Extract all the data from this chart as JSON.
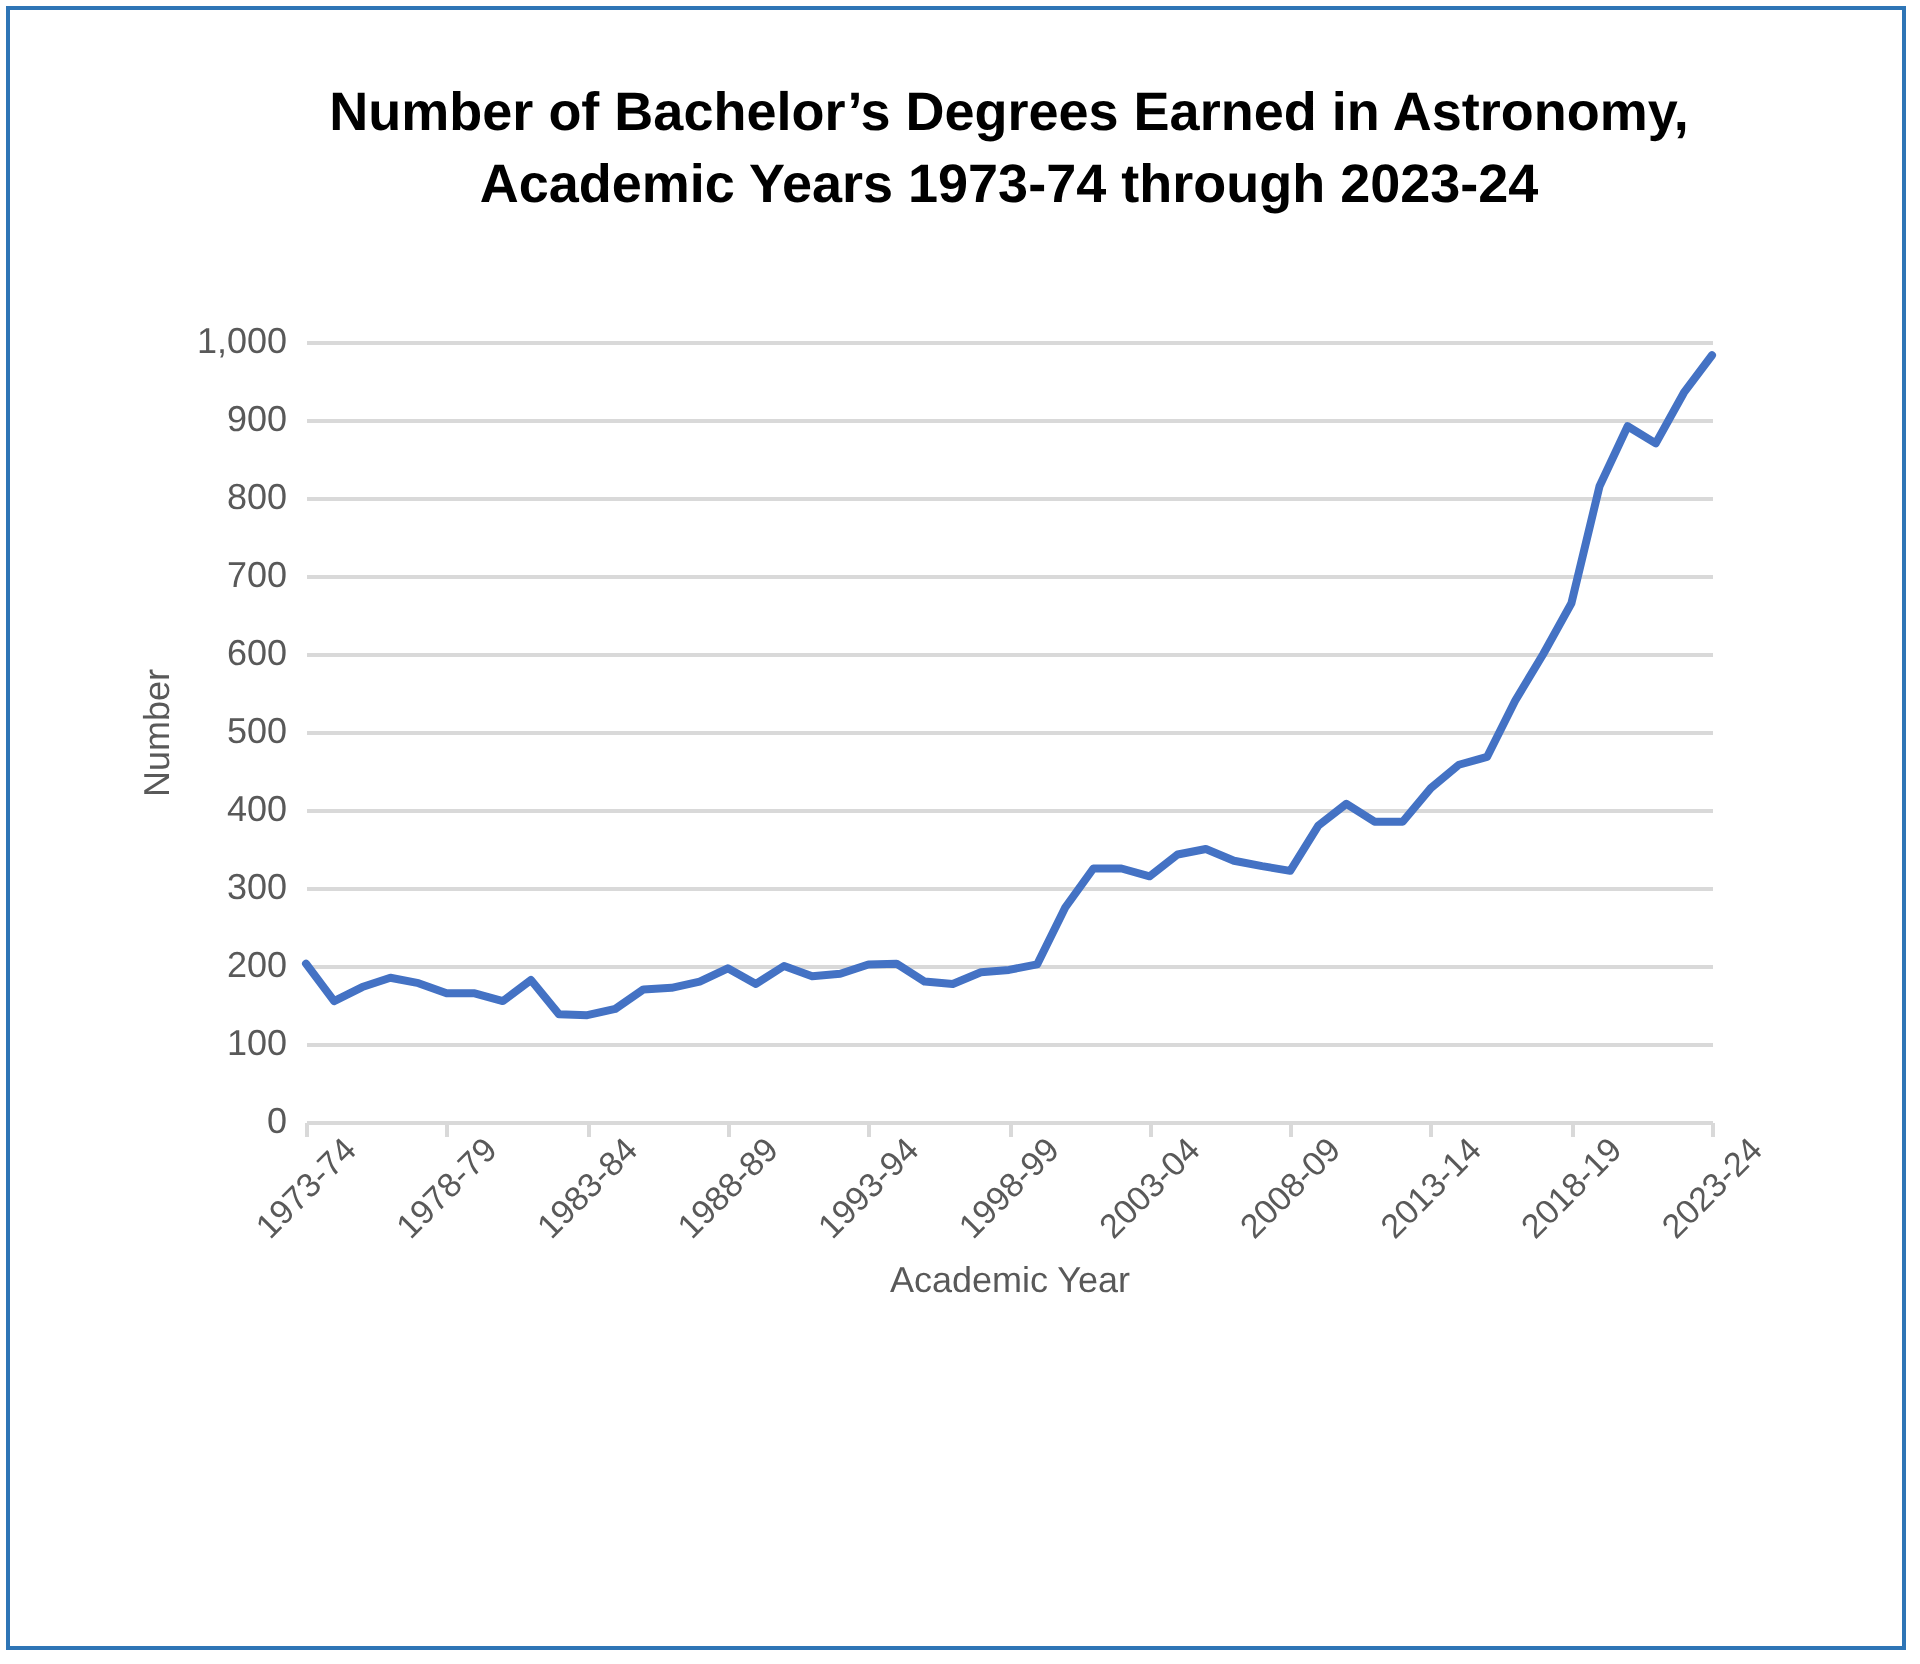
{
  "chart_data": {
    "type": "line",
    "title": "Number of Bachelor’s Degrees Earned in Astronomy,\nAcademic Years 1973-74 through 2023-24",
    "xlabel": "Academic Year",
    "ylabel": "Number",
    "categories": [
      "1973-74",
      null,
      null,
      null,
      null,
      "1978-79",
      null,
      null,
      null,
      null,
      "1983-84",
      null,
      null,
      null,
      null,
      "1988-89",
      null,
      null,
      null,
      null,
      "1993-94",
      null,
      null,
      null,
      null,
      "1998-99",
      null,
      null,
      null,
      null,
      "2003-04",
      null,
      null,
      null,
      null,
      "2008-09",
      null,
      null,
      null,
      null,
      "2013-14",
      null,
      null,
      null,
      null,
      "2018-19",
      null,
      null,
      null,
      null,
      "2023-24"
    ],
    "series": [
      {
        "color": "#4472c4",
        "values": [
          203,
          155,
          173,
          185,
          178,
          165,
          165,
          155,
          182,
          138,
          137,
          145,
          170,
          172,
          180,
          197,
          177,
          200,
          187,
          190,
          202,
          203,
          180,
          177,
          192,
          195,
          202,
          275,
          325,
          325,
          315,
          343,
          350,
          335,
          328,
          322,
          380,
          408,
          385,
          385,
          428,
          458,
          468,
          540,
          600,
          665,
          815,
          892,
          870,
          935,
          983
        ]
      }
    ],
    "ylim": [
      0,
      1000
    ],
    "yticks": [
      0,
      {
        "value": 100,
        "label": "100"
      },
      200,
      300,
      400,
      500,
      600,
      700,
      800,
      900,
      {
        "value": 1000,
        "label": "1,000"
      }
    ],
    "grid": "y",
    "marker": "none",
    "line_style": "solid"
  }
}
